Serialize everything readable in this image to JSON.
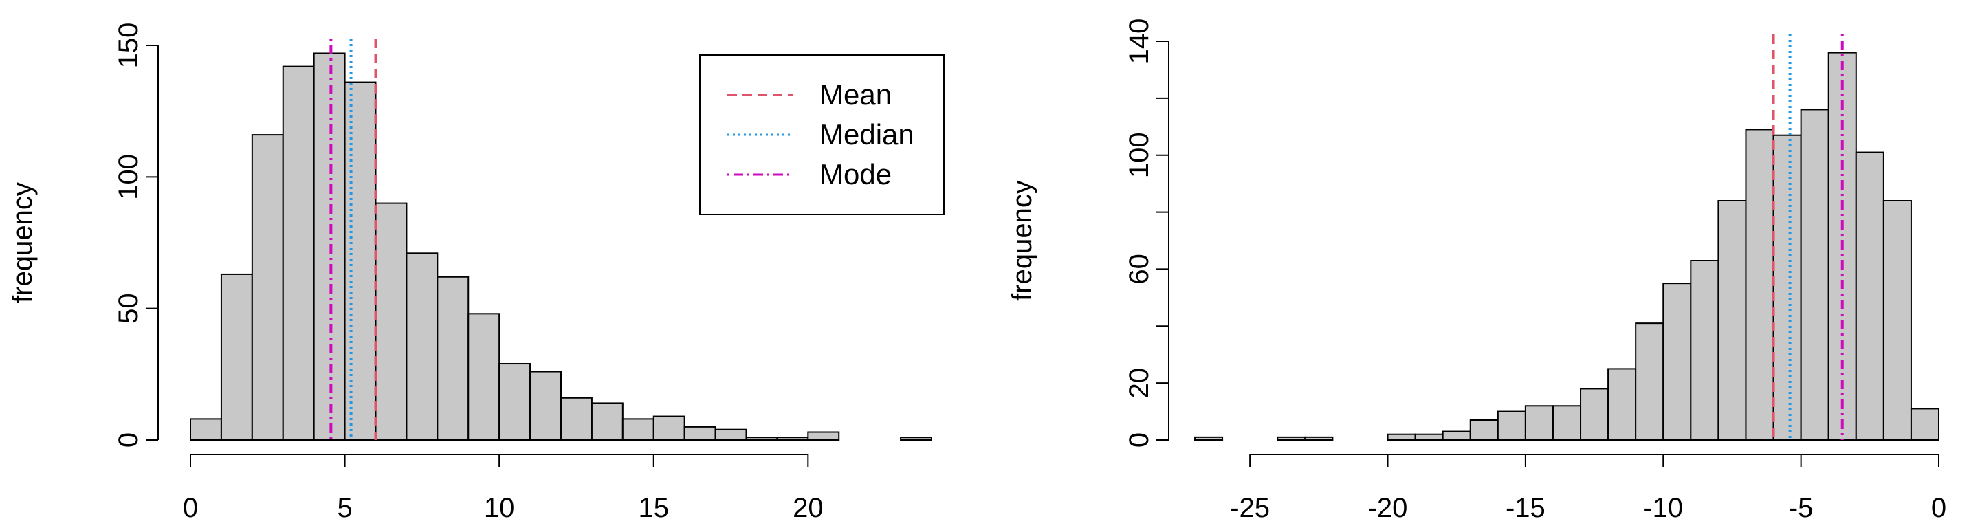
{
  "colors": {
    "bar_fill": "#C8C8C8",
    "bar_stroke": "#000000",
    "mean": "#DF536B",
    "median": "#2297E6",
    "mode": "#CD0BBC"
  },
  "legend": {
    "mean_label": "Mean",
    "median_label": "Median",
    "mode_label": "Mode"
  },
  "chart_data": [
    {
      "type": "bar",
      "subtype": "histogram",
      "title": "",
      "xlabel": "",
      "ylabel": "frequency",
      "bin_width": 1,
      "bin_edges_start": 0,
      "counts": [
        8,
        63,
        116,
        142,
        147,
        136,
        90,
        71,
        62,
        48,
        29,
        26,
        16,
        14,
        8,
        9,
        5,
        4,
        1,
        1,
        3,
        0,
        0,
        1
      ],
      "xlim": [
        0,
        24
      ],
      "ylim": [
        0,
        150
      ],
      "x_ticks": [
        0,
        5,
        10,
        15,
        20
      ],
      "x_tick_labels": [
        "0",
        "5",
        "10",
        "15",
        "20"
      ],
      "y_ticks": [
        0,
        50,
        100,
        150
      ],
      "y_tick_labels": [
        "0",
        "50",
        "100",
        "150"
      ],
      "reference_lines": [
        {
          "name": "Mean",
          "value": 6.0,
          "style": "dashed"
        },
        {
          "name": "Median",
          "value": 5.2,
          "style": "dotted"
        },
        {
          "name": "Mode",
          "value": 4.55,
          "style": "dotdash"
        }
      ],
      "legend": {
        "position": "top-right",
        "entries": [
          "Mean",
          "Median",
          "Mode"
        ]
      }
    },
    {
      "type": "bar",
      "subtype": "histogram",
      "title": "",
      "xlabel": "",
      "ylabel": "frequency",
      "bin_width": 1,
      "bin_edges_start": -27,
      "counts": [
        1,
        0,
        0,
        1,
        1,
        0,
        0,
        2,
        2,
        3,
        7,
        10,
        12,
        12,
        18,
        25,
        41,
        55,
        63,
        84,
        109,
        107,
        116,
        136,
        101,
        84,
        11
      ],
      "xlim": [
        -27,
        0
      ],
      "ylim": [
        0,
        140
      ],
      "x_ticks": [
        -25,
        -20,
        -15,
        -10,
        -5,
        0
      ],
      "x_tick_labels": [
        "-25",
        "-20",
        "-15",
        "-10",
        "-5",
        "0"
      ],
      "y_ticks": [
        0,
        20,
        40,
        60,
        80,
        100,
        120,
        140
      ],
      "y_tick_labels": [
        "0",
        "20",
        "",
        "60",
        "",
        "100",
        "",
        "140"
      ],
      "reference_lines": [
        {
          "name": "Mean",
          "value": -6.0,
          "style": "dashed"
        },
        {
          "name": "Median",
          "value": -5.4,
          "style": "dotted"
        },
        {
          "name": "Mode",
          "value": -3.5,
          "style": "dotdash"
        }
      ]
    }
  ]
}
